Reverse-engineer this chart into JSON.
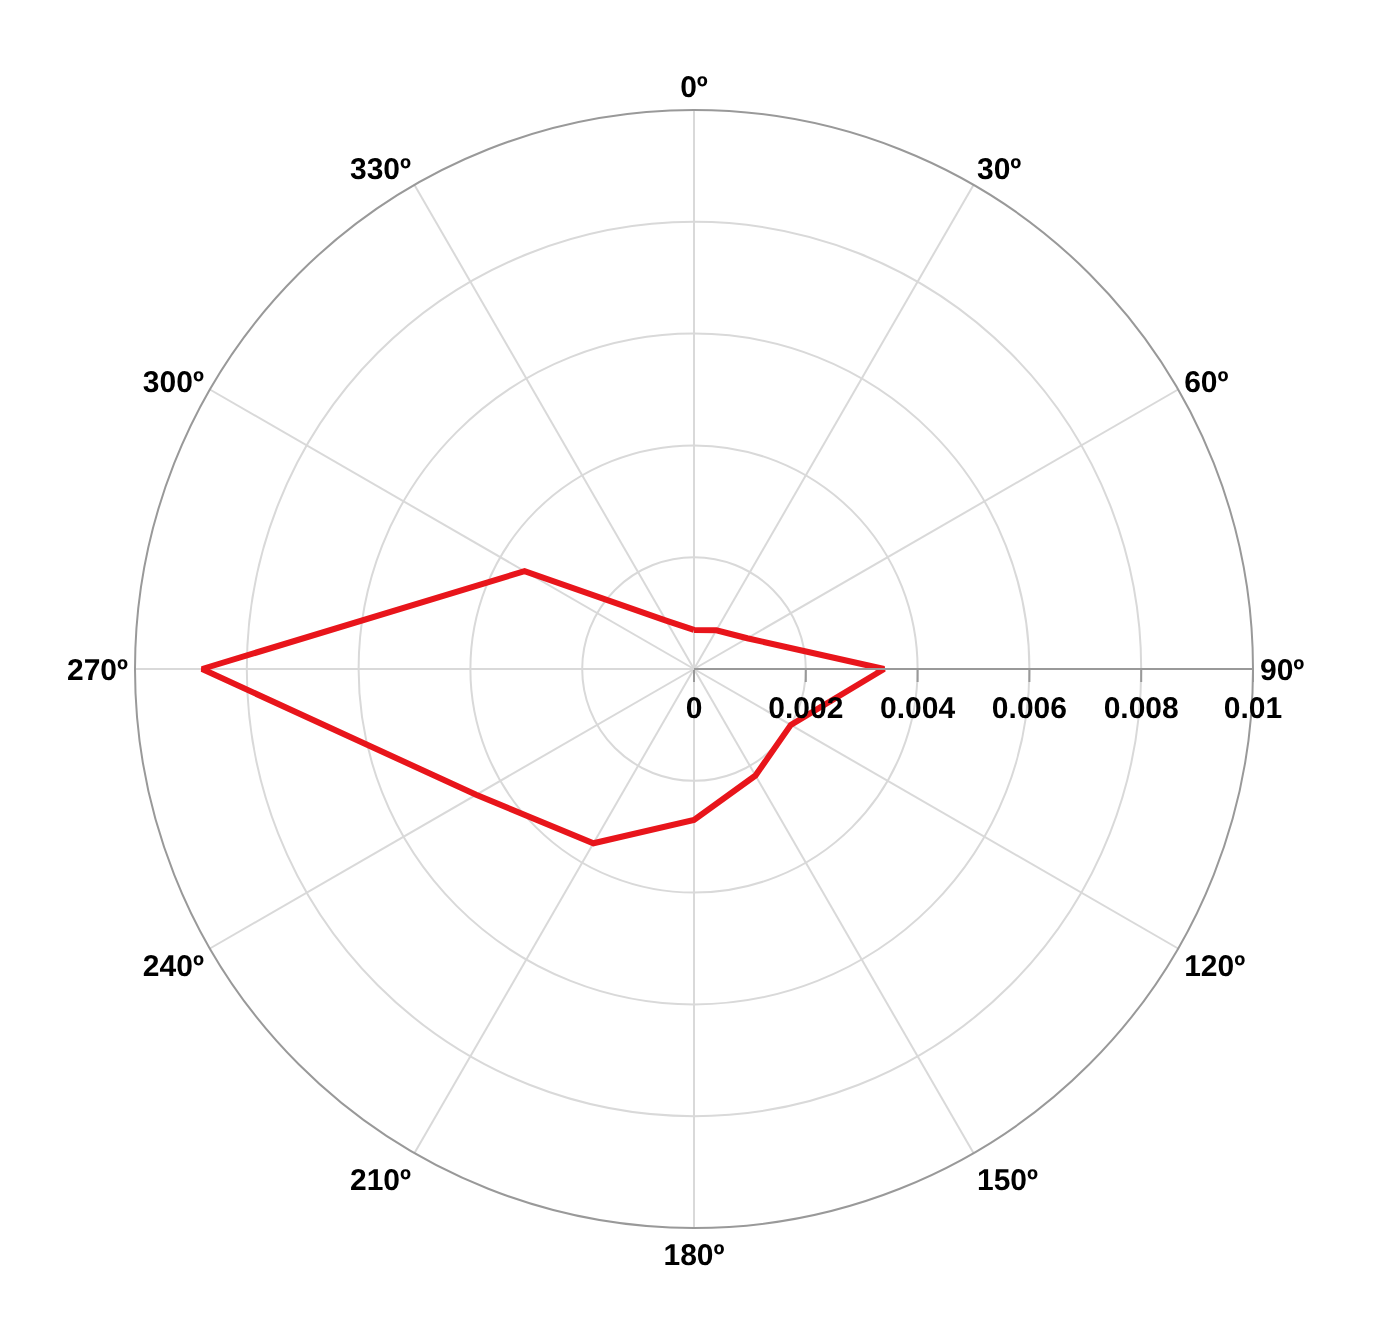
{
  "chart_data": {
    "type": "radar",
    "categories": [
      "0º",
      "30º",
      "60º",
      "90º",
      "120º",
      "150º",
      "180º",
      "210º",
      "240º",
      "270º",
      "300º",
      "330º"
    ],
    "ylim": [
      0,
      0.01
    ],
    "yticks": [
      0,
      0.002,
      0.004,
      0.006,
      0.008,
      0.01
    ],
    "grid": true,
    "line_style": "solid",
    "series": [
      {
        "color": "#e8151b",
        "values": [
          0.0007,
          0.0008,
          0.0011,
          0.0034,
          0.002,
          0.0022,
          0.0027,
          0.0036,
          0.0045,
          0.0088,
          0.0035,
          0.001
        ]
      }
    ]
  }
}
